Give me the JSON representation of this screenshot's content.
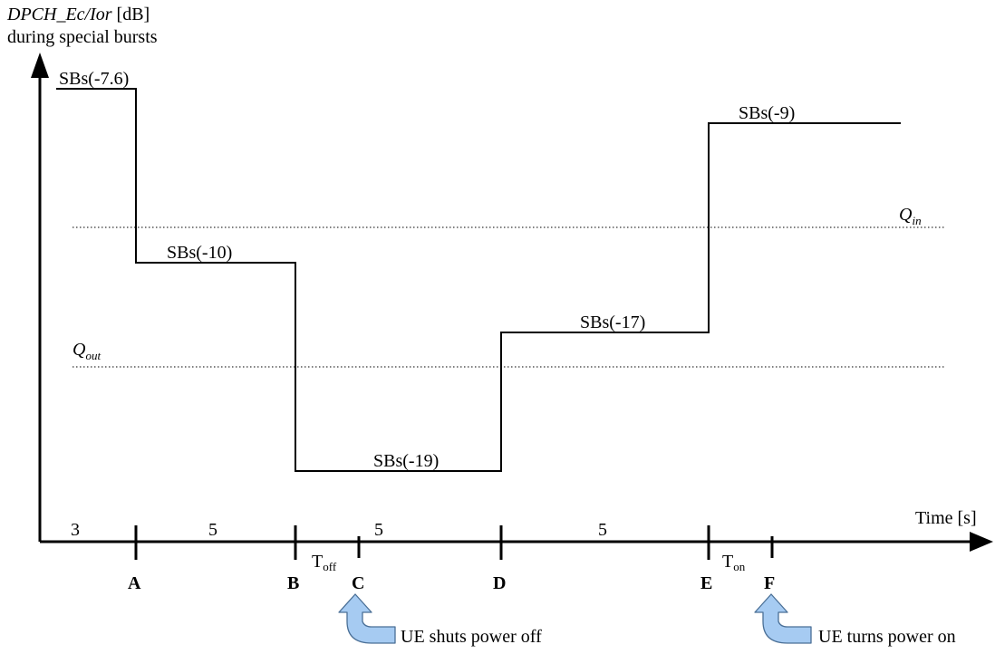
{
  "y_axis": {
    "label_italic": "DPCH_Ec/Ior",
    "label_rest": " [dB]",
    "label_line2": "during special bursts"
  },
  "x_axis": {
    "label": "Time [s]"
  },
  "thresholds": {
    "q_in": {
      "base": "Q",
      "sub": "in"
    },
    "q_out": {
      "base": "Q",
      "sub": "out"
    }
  },
  "segments": [
    {
      "label": "SBs(-7.6)",
      "value_db": -7.6
    },
    {
      "label": "SBs(-10)",
      "value_db": -10
    },
    {
      "label": "SBs(-19)",
      "value_db": -19
    },
    {
      "label": "SBs(-17)",
      "value_db": -17
    },
    {
      "label": "SBs(-9)",
      "value_db": -9
    }
  ],
  "durations": [
    "3",
    "5",
    "5",
    "5"
  ],
  "markers": [
    "A",
    "B",
    "C",
    "D",
    "E",
    "F"
  ],
  "intervals": {
    "t_off": {
      "base": "T",
      "sub": "off"
    },
    "t_on": {
      "base": "T",
      "sub": "on"
    }
  },
  "events": {
    "power_off": "UE shuts power off",
    "power_on": "UE turns power on"
  },
  "colors": {
    "line": "#000000",
    "arrow_fill": "#a6cbf2",
    "arrow_stroke": "#4a6f96"
  }
}
